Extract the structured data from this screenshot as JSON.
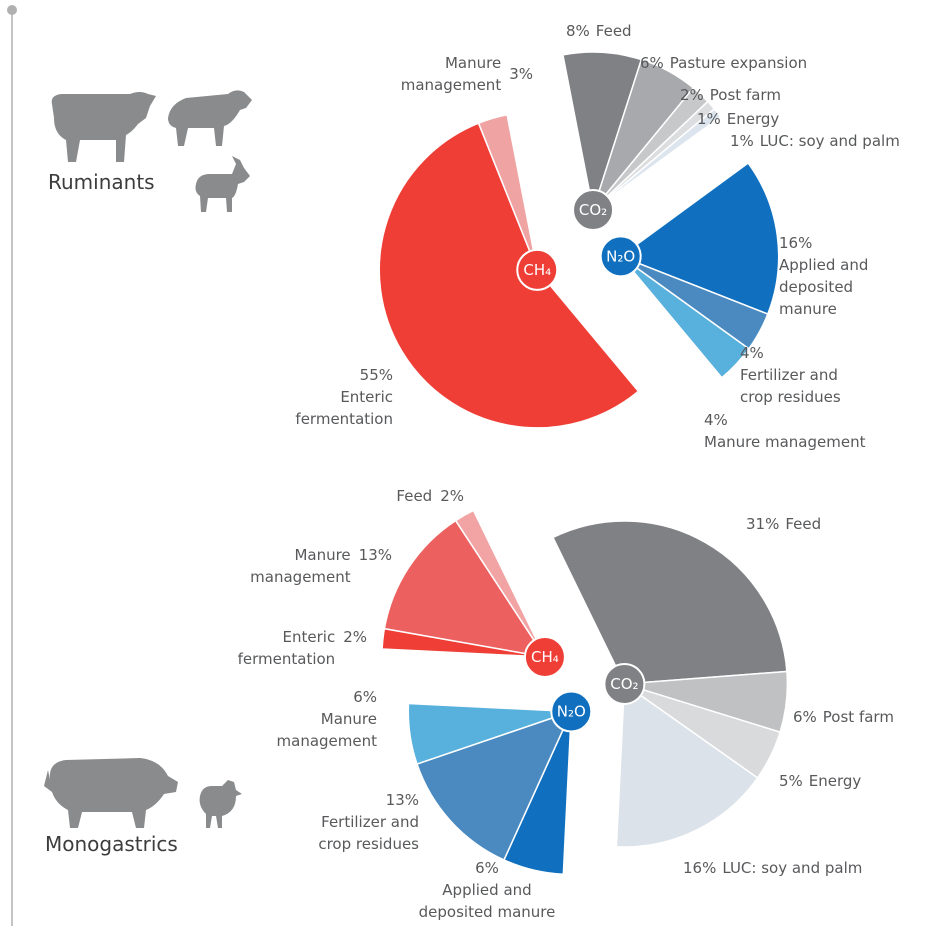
{
  "chart_data": [
    {
      "type": "pie",
      "title": "Ruminants",
      "series": [
        {
          "name": "CO₂",
          "color": "#808184",
          "categories": [
            "Feed",
            "Pasture expansion",
            "Post farm",
            "Energy",
            "LUC: soy and palm"
          ],
          "values": [
            8,
            6,
            2,
            1,
            1
          ],
          "value_labels": [
            "8%",
            "6%",
            "2%",
            "1%",
            "1%"
          ],
          "colors": [
            "#808184",
            "#a7a9ac",
            "#c7c8ca",
            "#dcdddf",
            "#dce5ee"
          ]
        },
        {
          "name": "N₂O",
          "color": "#1070bf",
          "categories": [
            "Applied and deposited manure",
            "Fertilizer and crop residues",
            "Manure management"
          ],
          "values": [
            16,
            4,
            4
          ],
          "value_labels": [
            "16%",
            "4%",
            "4%"
          ],
          "colors": [
            "#1070bf",
            "#4a8ac0",
            "#58b0dd"
          ]
        },
        {
          "name": "CH₄",
          "color": "#ef3e36",
          "categories": [
            "Enteric fermentation",
            "Manure management"
          ],
          "values": [
            55,
            3
          ],
          "value_labels": [
            "55%",
            "3%"
          ],
          "colors": [
            "#ef3e36",
            "#f0a3a3"
          ]
        }
      ]
    },
    {
      "type": "pie",
      "title": "Monogastrics",
      "series": [
        {
          "name": "CO₂",
          "color": "#808184",
          "categories": [
            "Feed",
            "Post farm",
            "Energy",
            "LUC: soy and palm"
          ],
          "values": [
            31,
            6,
            5,
            16
          ],
          "value_labels": [
            "31%",
            "6%",
            "5%",
            "16%"
          ],
          "colors": [
            "#808184",
            "#c0c1c3",
            "#d9dadc",
            "#dbe2e9"
          ]
        },
        {
          "name": "N₂O",
          "color": "#1070bf",
          "categories": [
            "Applied and deposited manure",
            "Fertilizer and crop residues",
            "Manure management"
          ],
          "values": [
            6,
            13,
            6
          ],
          "value_labels": [
            "6%",
            "13%",
            "6%"
          ],
          "colors": [
            "#1070bf",
            "#4a8ac0",
            "#58b0dd"
          ]
        },
        {
          "name": "CH₄",
          "color": "#ef3e36",
          "categories": [
            "Enteric fermentation",
            "Manure management",
            "Feed"
          ],
          "values": [
            2,
            13,
            2
          ],
          "value_labels": [
            "2%",
            "13%",
            "2%"
          ],
          "colors": [
            "#ef3e36",
            "#ec6060",
            "#f2a3a3"
          ]
        }
      ]
    }
  ]
}
